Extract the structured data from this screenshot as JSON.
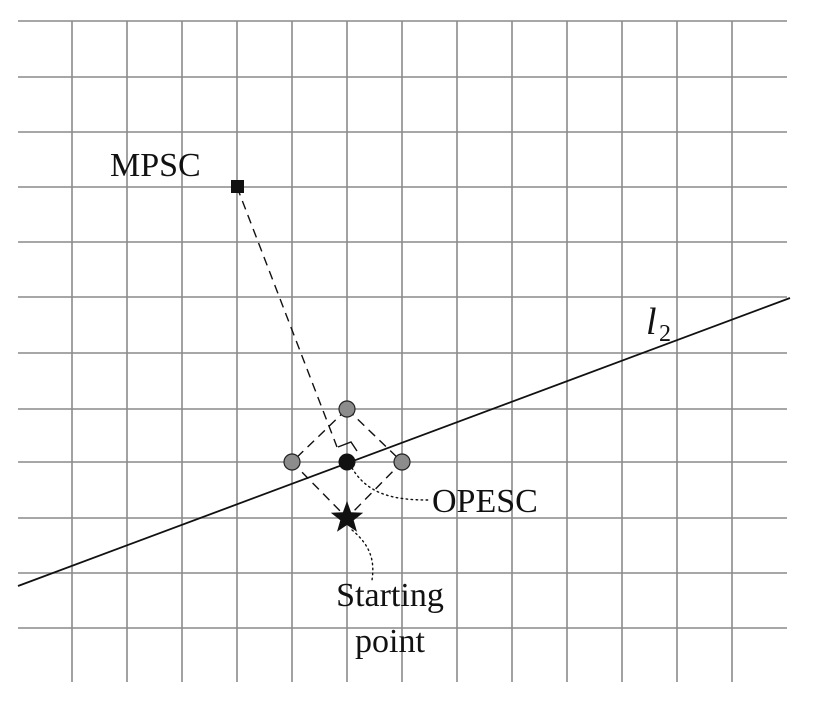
{
  "labels": {
    "mpsc": "MPSC",
    "opesc": "OPESC",
    "line_name": "l",
    "line_subscript": "2",
    "starting_point_line1": "Starting",
    "starting_point_line2": "point"
  },
  "colors": {
    "grid": "#8a8a8a",
    "ink": "#111111",
    "candidate_fill": "#8c8c8c"
  },
  "icons": {
    "mpsc_marker": "filled-square-icon",
    "opesc_marker": "filled-circle-icon",
    "candidate_marker": "grey-circle-icon",
    "start_marker": "star-icon"
  }
}
